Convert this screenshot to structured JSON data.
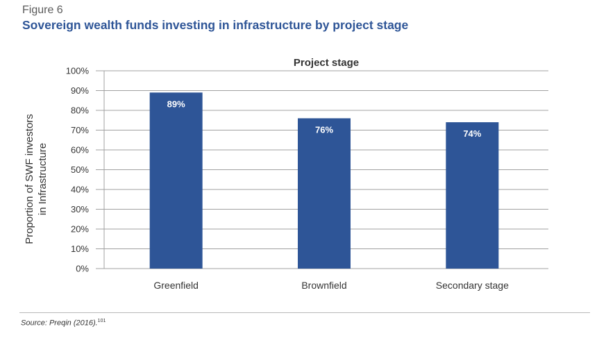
{
  "figure": {
    "label": "Figure 6",
    "title": "Sovereign wealth funds investing in infrastructure by project stage"
  },
  "source": {
    "text": "Source: Preqin (2016).",
    "ref": "101"
  },
  "chart_data": {
    "type": "bar",
    "title": "Project stage",
    "ylabel": [
      "Proportion of SWF investors",
      "in Infrastructure"
    ],
    "xlabel": "",
    "categories": [
      "Greenfield",
      "Brownfield",
      "Secondary stage"
    ],
    "values": [
      89,
      76,
      74
    ],
    "data_labels": [
      "89%",
      "76%",
      "74%"
    ],
    "ylim": [
      0,
      100
    ],
    "yticks": [
      0,
      10,
      20,
      30,
      40,
      50,
      60,
      70,
      80,
      90,
      100
    ],
    "ytick_labels": [
      "0%",
      "10%",
      "20%",
      "30%",
      "40%",
      "50%",
      "60%",
      "70%",
      "80%",
      "90%",
      "100%"
    ],
    "grid": true,
    "legend": "none",
    "bar_color": "#2e5597",
    "grid_color": "#a0a0a0"
  }
}
